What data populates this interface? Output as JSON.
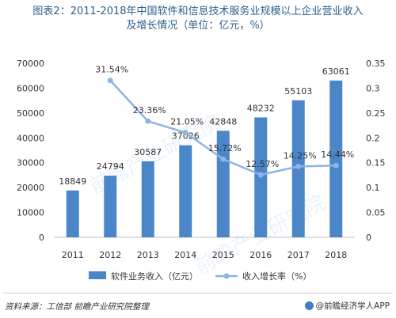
{
  "title": {
    "line1": "图表2：2011-2018年中国软件和信息技术服务业规模以上企业营业收入",
    "line2": "及增长情况（单位：亿元，%）"
  },
  "footer": {
    "source": "资料来源：工信部 前瞻产业研究院整理",
    "credit": "@前瞻经济学人APP",
    "credit_icon": "qianzhan-logo-icon"
  },
  "watermark": "前瞻产业研究院",
  "chart_data": {
    "type": "bar",
    "categories": [
      "2011",
      "2012",
      "2013",
      "2014",
      "2015",
      "2016",
      "2017",
      "2018"
    ],
    "series": [
      {
        "name": "软件业务收入（亿元）",
        "type": "bar",
        "axis": "left",
        "color": "#4a86c8",
        "values": [
          18849,
          24794,
          30587,
          37026,
          42848,
          48232,
          55103,
          63061
        ],
        "labels": [
          "18849",
          "24794",
          "30587",
          "37026",
          "42848",
          "48232",
          "55103",
          "63061"
        ]
      },
      {
        "name": "收入增长率（%）",
        "type": "line",
        "axis": "right",
        "color": "#8db4e2",
        "values": [
          0.3154,
          0.2336,
          0.2105,
          0.1572,
          0.1257,
          0.1425,
          0.1444
        ],
        "x": [
          "2012",
          "2013",
          "2014",
          "2015",
          "2016",
          "2017",
          "2018"
        ],
        "labels": [
          "31.54%",
          "23.36%",
          "21.05%",
          "15.72%",
          "12.57%",
          "14.25%",
          "14.44%"
        ]
      }
    ],
    "left_axis": {
      "ylim": [
        0,
        70000
      ],
      "ticks": [
        0,
        10000,
        20000,
        30000,
        40000,
        50000,
        60000,
        70000
      ],
      "tick_labels": [
        "0",
        "10000",
        "20000",
        "30000",
        "40000",
        "50000",
        "60000",
        "70000"
      ]
    },
    "right_axis": {
      "ylim": [
        0,
        0.35
      ],
      "ticks": [
        0,
        0.05,
        0.1,
        0.15,
        0.2,
        0.25,
        0.3,
        0.35
      ],
      "tick_labels": [
        "0",
        "0.05",
        "0.1",
        "0.15",
        "0.2",
        "0.25",
        "0.3",
        "0.35"
      ]
    },
    "grid": false,
    "legend_position": "bottom"
  }
}
